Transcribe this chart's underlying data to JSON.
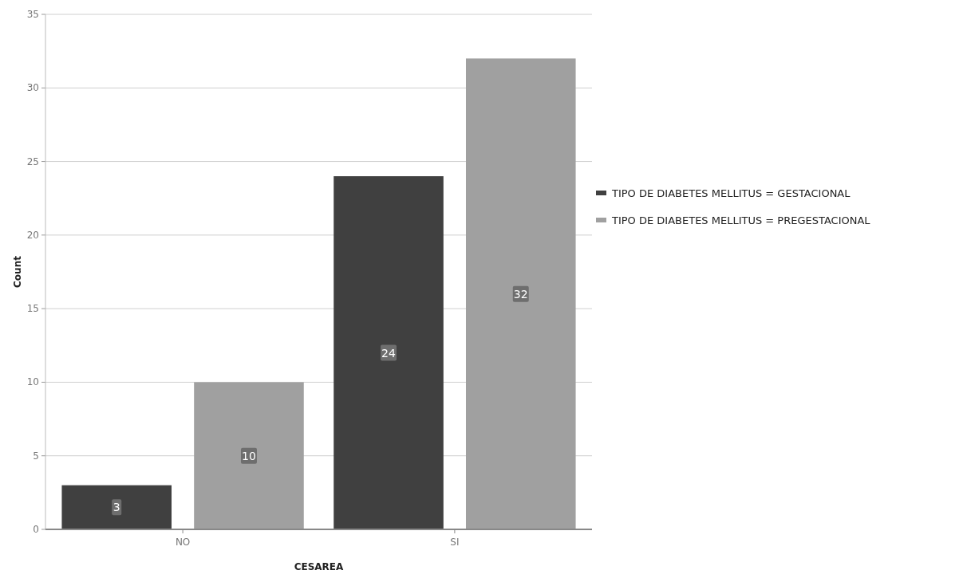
{
  "chart_data": {
    "type": "bar",
    "xlabel": "CESAREA",
    "ylabel": "Count",
    "categories": [
      "NO",
      "SI"
    ],
    "series": [
      {
        "name": "TIPO DE DIABETES MELLITUS = GESTACIONAL",
        "color": "#404040",
        "values": [
          3,
          24
        ]
      },
      {
        "name": "TIPO DE DIABETES MELLITUS = PREGESTACIONAL",
        "color": "#a0a0a0",
        "values": [
          10,
          32
        ]
      }
    ],
    "ylim": [
      0,
      35
    ],
    "yticks": [
      0,
      5,
      10,
      15,
      20,
      25,
      30,
      35
    ],
    "grid": "y",
    "legend": "right",
    "data_labels": true
  }
}
